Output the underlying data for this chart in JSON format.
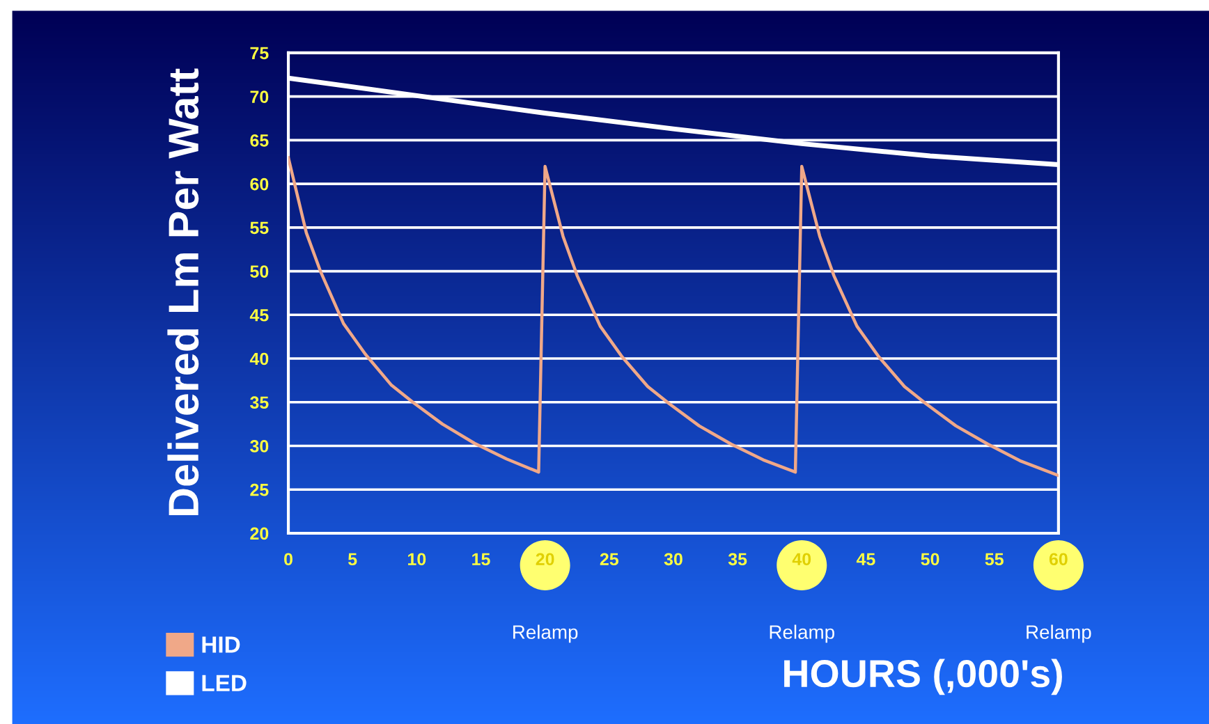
{
  "chart_data": {
    "type": "line",
    "ylabel": "Delivered Lm Per Watt",
    "xlabel": "HOURS (,000's)",
    "xlim": [
      0,
      60
    ],
    "xticks": [
      0,
      5,
      10,
      15,
      20,
      25,
      30,
      35,
      40,
      45,
      50,
      55,
      60
    ],
    "ylim": [
      20,
      75
    ],
    "yticks": [
      20,
      25,
      30,
      35,
      40,
      45,
      50,
      55,
      60,
      65,
      70,
      75
    ],
    "grid": "y",
    "legend": "bottom left",
    "marker": "none",
    "line_style": "solid",
    "series": [
      {
        "name": "HID",
        "color": "#f0a888",
        "x": [
          0,
          1.4,
          2.5,
          4.3,
          6,
          8,
          9.7,
          12,
          14.5,
          17,
          19.5,
          20,
          21.4,
          22.5,
          24.3,
          26,
          28,
          29.7,
          32,
          34.5,
          37,
          39.5,
          40,
          41.4,
          42.5,
          44.3,
          46,
          48,
          49.7,
          52,
          54.5,
          57,
          60
        ],
        "values": [
          63,
          54.4,
          50,
          44,
          40.5,
          37,
          35,
          32.5,
          30.3,
          28.5,
          27,
          62,
          54,
          49.5,
          43.7,
          40.2,
          36.8,
          34.8,
          32.3,
          30.2,
          28.4,
          27,
          62,
          54,
          49.5,
          43.7,
          40.2,
          36.8,
          34.8,
          32.3,
          30.2,
          28.3,
          26.6
        ]
      },
      {
        "name": "LED",
        "color": "#ffffff",
        "x": [
          0,
          10,
          20,
          30,
          40,
          50,
          60
        ],
        "values": [
          72.1,
          70.1,
          68.1,
          66.3,
          64.6,
          63.2,
          62.2
        ]
      }
    ],
    "annotations": [
      "Relamp",
      "Relamp",
      "Relamp"
    ]
  }
}
